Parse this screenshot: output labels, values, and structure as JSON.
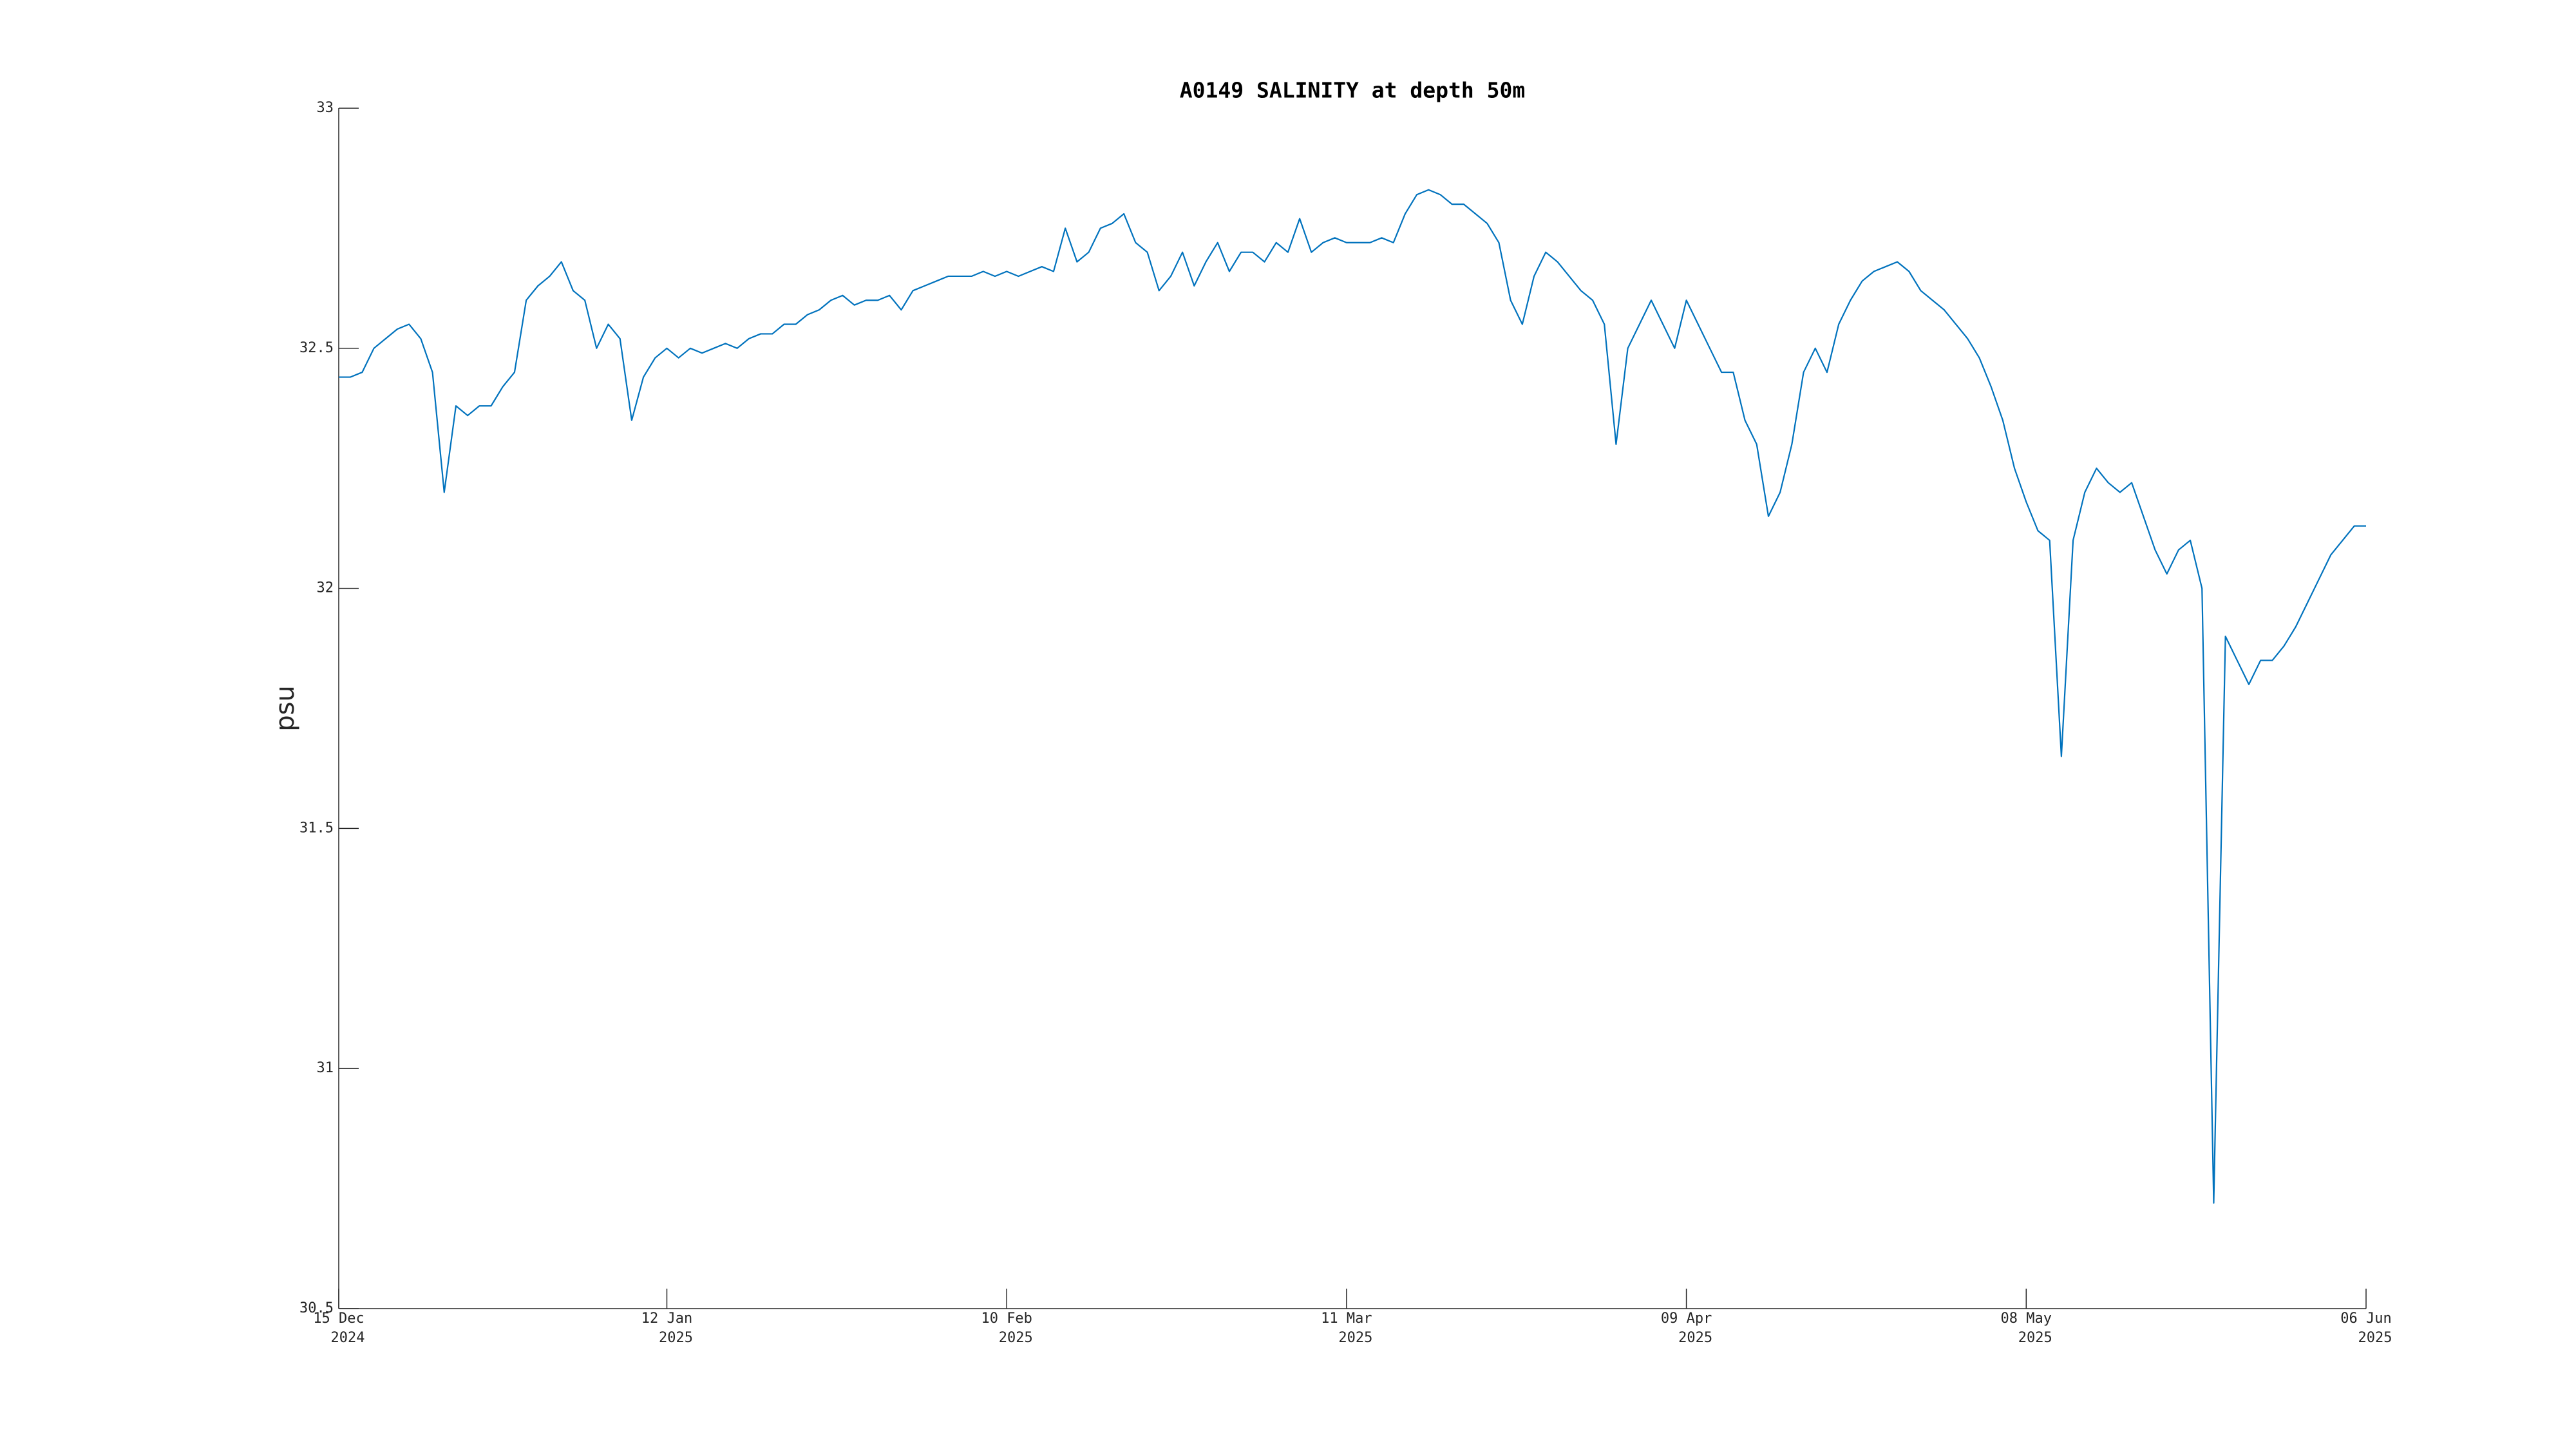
{
  "chart_data": {
    "type": "line",
    "title": "A0149 SALINITY at depth 50m",
    "y_label": "psu",
    "color": "#0072bd",
    "xlim": [
      "2024-12-15",
      "2025-06-06"
    ],
    "xticks": [
      {
        "value": "2024-12-15",
        "label": [
          "15 Dec",
          "2024"
        ]
      },
      {
        "value": "2025-01-12",
        "label": [
          "12 Jan",
          "2025"
        ]
      },
      {
        "value": "2025-02-10",
        "label": [
          "10 Feb",
          "2025"
        ]
      },
      {
        "value": "2025-03-11",
        "label": [
          "11 Mar",
          "2025"
        ]
      },
      {
        "value": "2025-04-09",
        "label": [
          "09 Apr",
          "2025"
        ]
      },
      {
        "value": "2025-05-08",
        "label": [
          "08 May",
          "2025"
        ]
      },
      {
        "value": "2025-06-06",
        "label": [
          "06 Jun",
          "2025"
        ]
      }
    ],
    "ylim": [
      30.5,
      33
    ],
    "yticks": [
      30.5,
      31,
      31.5,
      32,
      32.5,
      33
    ],
    "grid": false,
    "x": [
      "2024-12-15",
      "2024-12-16",
      "2024-12-17",
      "2024-12-18",
      "2024-12-19",
      "2024-12-20",
      "2024-12-21",
      "2024-12-22",
      "2024-12-23",
      "2024-12-24",
      "2024-12-25",
      "2024-12-26",
      "2024-12-27",
      "2024-12-28",
      "2024-12-29",
      "2024-12-30",
      "2024-12-31",
      "2025-01-01",
      "2025-01-02",
      "2025-01-03",
      "2025-01-04",
      "2025-01-05",
      "2025-01-06",
      "2025-01-07",
      "2025-01-08",
      "2025-01-09",
      "2025-01-10",
      "2025-01-11",
      "2025-01-12",
      "2025-01-13",
      "2025-01-14",
      "2025-01-15",
      "2025-01-16",
      "2025-01-17",
      "2025-01-18",
      "2025-01-19",
      "2025-01-20",
      "2025-01-21",
      "2025-01-22",
      "2025-01-23",
      "2025-01-24",
      "2025-01-25",
      "2025-01-26",
      "2025-01-27",
      "2025-01-28",
      "2025-01-29",
      "2025-01-30",
      "2025-01-31",
      "2025-02-01",
      "2025-02-02",
      "2025-02-03",
      "2025-02-04",
      "2025-02-05",
      "2025-02-06",
      "2025-02-07",
      "2025-02-08",
      "2025-02-09",
      "2025-02-10",
      "2025-02-11",
      "2025-02-12",
      "2025-02-13",
      "2025-02-14",
      "2025-02-15",
      "2025-02-16",
      "2025-02-17",
      "2025-02-18",
      "2025-02-19",
      "2025-02-20",
      "2025-02-21",
      "2025-02-22",
      "2025-02-23",
      "2025-02-24",
      "2025-02-25",
      "2025-02-26",
      "2025-02-27",
      "2025-02-28",
      "2025-03-01",
      "2025-03-02",
      "2025-03-03",
      "2025-03-04",
      "2025-03-05",
      "2025-03-06",
      "2025-03-07",
      "2025-03-08",
      "2025-03-09",
      "2025-03-10",
      "2025-03-11",
      "2025-03-12",
      "2025-03-13",
      "2025-03-14",
      "2025-03-15",
      "2025-03-16",
      "2025-03-17",
      "2025-03-18",
      "2025-03-19",
      "2025-03-20",
      "2025-03-21",
      "2025-03-22",
      "2025-03-23",
      "2025-03-24",
      "2025-03-25",
      "2025-03-26",
      "2025-03-27",
      "2025-03-28",
      "2025-03-29",
      "2025-03-30",
      "2025-03-31",
      "2025-04-01",
      "2025-04-02",
      "2025-04-03",
      "2025-04-04",
      "2025-04-05",
      "2025-04-06",
      "2025-04-07",
      "2025-04-08",
      "2025-04-09",
      "2025-04-10",
      "2025-04-11",
      "2025-04-12",
      "2025-04-13",
      "2025-04-14",
      "2025-04-15",
      "2025-04-16",
      "2025-04-17",
      "2025-04-18",
      "2025-04-19",
      "2025-04-20",
      "2025-04-21",
      "2025-04-22",
      "2025-04-23",
      "2025-04-24",
      "2025-04-25",
      "2025-04-26",
      "2025-04-27",
      "2025-04-28",
      "2025-04-29",
      "2025-04-30",
      "2025-05-01",
      "2025-05-02",
      "2025-05-03",
      "2025-05-04",
      "2025-05-05",
      "2025-05-06",
      "2025-05-07",
      "2025-05-08",
      "2025-05-09",
      "2025-05-10",
      "2025-05-11",
      "2025-05-12",
      "2025-05-13",
      "2025-05-14",
      "2025-05-15",
      "2025-05-16",
      "2025-05-17",
      "2025-05-18",
      "2025-05-19",
      "2025-05-20",
      "2025-05-21",
      "2025-05-22",
      "2025-05-23",
      "2025-05-24",
      "2025-05-25",
      "2025-05-26",
      "2025-05-27",
      "2025-05-28",
      "2025-05-29",
      "2025-05-30",
      "2025-05-31",
      "2025-06-01",
      "2025-06-02",
      "2025-06-03",
      "2025-06-04",
      "2025-06-05",
      "2025-06-06"
    ],
    "values": [
      32.44,
      32.44,
      32.45,
      32.5,
      32.52,
      32.54,
      32.55,
      32.52,
      32.45,
      32.2,
      32.38,
      32.36,
      32.38,
      32.38,
      32.42,
      32.45,
      32.6,
      32.63,
      32.65,
      32.68,
      32.62,
      32.6,
      32.5,
      32.55,
      32.52,
      32.35,
      32.44,
      32.48,
      32.5,
      32.48,
      32.5,
      32.49,
      32.5,
      32.51,
      32.5,
      32.52,
      32.53,
      32.53,
      32.55,
      32.55,
      32.57,
      32.58,
      32.6,
      32.61,
      32.59,
      32.6,
      32.6,
      32.61,
      32.58,
      32.62,
      32.63,
      32.64,
      32.65,
      32.65,
      32.65,
      32.66,
      32.65,
      32.66,
      32.65,
      32.66,
      32.67,
      32.66,
      32.75,
      32.68,
      32.7,
      32.75,
      32.76,
      32.78,
      32.72,
      32.7,
      32.62,
      32.65,
      32.7,
      32.63,
      32.68,
      32.72,
      32.66,
      32.7,
      32.7,
      32.68,
      32.72,
      32.7,
      32.77,
      32.7,
      32.72,
      32.73,
      32.72,
      32.72,
      32.72,
      32.73,
      32.72,
      32.78,
      32.82,
      32.83,
      32.82,
      32.8,
      32.8,
      32.78,
      32.76,
      32.72,
      32.6,
      32.55,
      32.65,
      32.7,
      32.68,
      32.65,
      32.62,
      32.6,
      32.55,
      32.3,
      32.5,
      32.55,
      32.6,
      32.55,
      32.5,
      32.6,
      32.55,
      32.5,
      32.45,
      32.45,
      32.35,
      32.3,
      32.15,
      32.2,
      32.3,
      32.45,
      32.5,
      32.45,
      32.55,
      32.6,
      32.64,
      32.66,
      32.67,
      32.68,
      32.66,
      32.62,
      32.6,
      32.58,
      32.55,
      32.52,
      32.48,
      32.42,
      32.35,
      32.25,
      32.18,
      32.12,
      32.1,
      31.65,
      32.1,
      32.2,
      32.25,
      32.22,
      32.2,
      32.22,
      32.15,
      32.08,
      32.03,
      32.08,
      32.1,
      32.0,
      30.72,
      31.9,
      31.85,
      31.8,
      31.85,
      31.85,
      31.88,
      31.92,
      31.97,
      32.02,
      32.07,
      32.1,
      32.13,
      32.13
    ]
  }
}
